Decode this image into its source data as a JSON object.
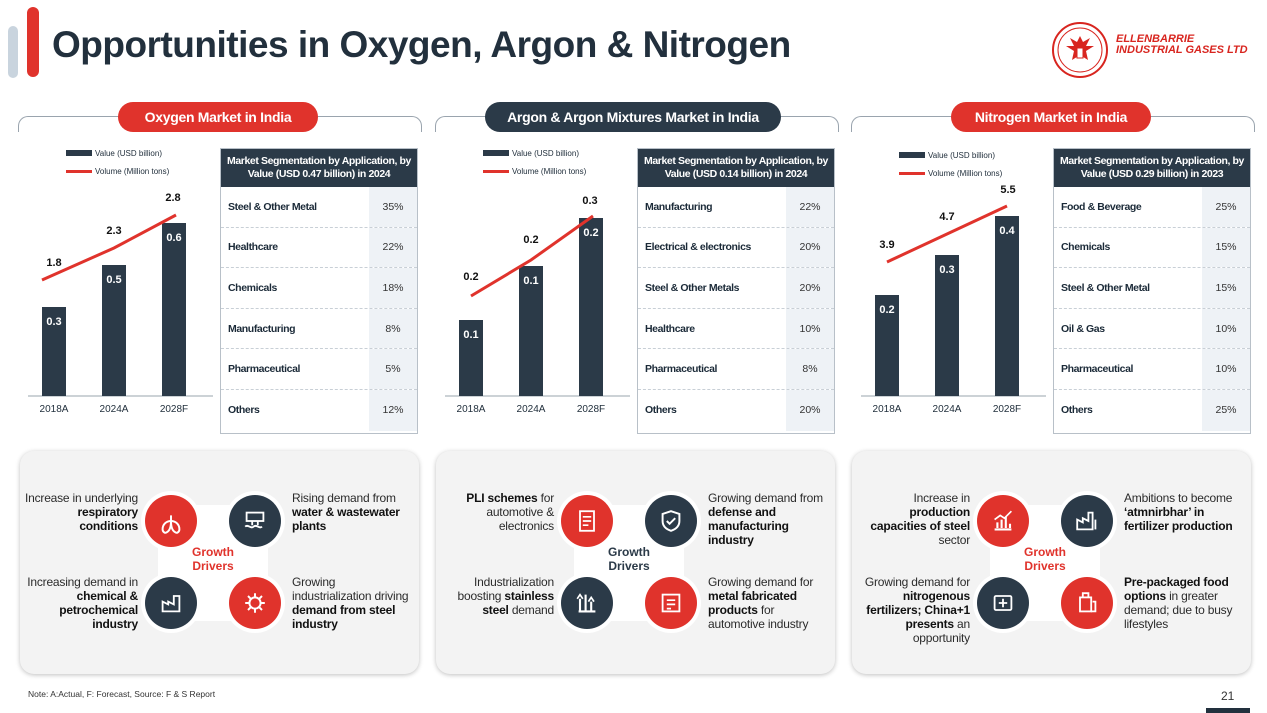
{
  "title": "Opportunities in Oxygen, Argon & Nitrogen",
  "logo": {
    "line1": "ELLENBARRIE",
    "line2": "INDUSTRIAL GASES LTD",
    "color": "#d8251f"
  },
  "colors": {
    "red": "#e0332c",
    "dark": "#2b3a48"
  },
  "legend": {
    "bar": "Value (USD billion)",
    "line": "Volume (Million tons)"
  },
  "chart_data": [
    {
      "type": "bar+line",
      "title": "Oxygen Market in India",
      "categories": [
        "2018A",
        "2024A",
        "2028F"
      ],
      "series": [
        {
          "name": "Value (USD billion)",
          "type": "bar",
          "values": [
            0.3,
            0.5,
            0.6
          ]
        },
        {
          "name": "Volume (Million tons)",
          "type": "line",
          "values": [
            1.8,
            2.3,
            2.8
          ]
        }
      ]
    },
    {
      "type": "bar+line",
      "title": "Argon & Argon Mixtures Market in India",
      "categories": [
        "2018A",
        "2024A",
        "2028F"
      ],
      "series": [
        {
          "name": "Value (USD billion)",
          "type": "bar",
          "values": [
            0.1,
            0.1,
            0.2
          ]
        },
        {
          "name": "Volume (Million tons)",
          "type": "line",
          "values": [
            0.2,
            0.2,
            0.3
          ]
        }
      ]
    },
    {
      "type": "bar+line",
      "title": "Nitrogen Market in India",
      "categories": [
        "2018A",
        "2024A",
        "2028F"
      ],
      "series": [
        {
          "name": "Value (USD billion)",
          "type": "bar",
          "values": [
            0.2,
            0.3,
            0.4
          ]
        },
        {
          "name": "Volume (Million tons)",
          "type": "line",
          "values": [
            3.9,
            4.7,
            5.5
          ]
        }
      ]
    }
  ],
  "panels": [
    {
      "pill": "Oxygen Market in India",
      "pill_style": "red",
      "seg_title": "Market Segmentation by Application, by Value (USD 0.47 billion) in 2024",
      "rows": [
        [
          "Steel & Other Metal",
          "35%"
        ],
        [
          "Healthcare",
          "22%"
        ],
        [
          "Chemicals",
          "18%"
        ],
        [
          "Manufacturing",
          "8%"
        ],
        [
          "Pharmaceutical",
          "5%"
        ],
        [
          "Others",
          "12%"
        ]
      ]
    },
    {
      "pill": "Argon & Argon Mixtures Market in India",
      "pill_style": "dark",
      "seg_title": "Market Segmentation by Application, by Value (USD 0.14 billion) in 2024",
      "rows": [
        [
          "Manufacturing",
          "22%"
        ],
        [
          "Electrical & electronics",
          "20%"
        ],
        [
          "Steel & Other Metals",
          "20%"
        ],
        [
          "Healthcare",
          "10%"
        ],
        [
          "Pharmaceutical",
          "8%"
        ],
        [
          "Others",
          "20%"
        ]
      ]
    },
    {
      "pill": "Nitrogen Market in India",
      "pill_style": "red",
      "seg_title": "Market Segmentation by Application, by Value (USD 0.29 billion) in 2023",
      "rows": [
        [
          "Food & Beverage",
          "25%"
        ],
        [
          "Chemicals",
          "15%"
        ],
        [
          "Steel & Other Metal",
          "15%"
        ],
        [
          "Oil & Gas",
          "10%"
        ],
        [
          "Pharmaceutical",
          "10%"
        ],
        [
          "Others",
          "25%"
        ]
      ]
    }
  ],
  "drivers": [
    {
      "center": "Growth Drivers",
      "center_color": "#e0332c",
      "tl": {
        "pre": "Increase in underlying ",
        "bold": "respiratory conditions",
        "post": ""
      },
      "tr": {
        "pre": "Rising demand from ",
        "bold": "water & wastewater plants",
        "post": ""
      },
      "bl": {
        "pre": "Increasing demand in ",
        "bold": "chemical & petrochemical industry",
        "post": ""
      },
      "br": {
        "pre": "Growing industrialization driving ",
        "bold": "demand from steel industry",
        "post": ""
      },
      "icons": [
        "lungs-icon",
        "water-plant-icon",
        "chemical-plant-icon",
        "steel-gear-icon"
      ]
    },
    {
      "center": "Growth Drivers",
      "center_color": "#2b3a48",
      "tl": {
        "pre": "",
        "bold": "PLI schemes",
        "post": " for automotive & electronics"
      },
      "tr": {
        "pre": "Growing demand from ",
        "bold": "defense and manufacturing industry",
        "post": ""
      },
      "bl": {
        "pre": "Industrialization boosting ",
        "bold": "stainless steel",
        "post": " demand"
      },
      "br": {
        "pre": "Growing demand for ",
        "bold": "metal fabricated products",
        "post": " for automotive industry"
      },
      "icons": [
        "document-icon",
        "shield-icon",
        "tools-icon",
        "fabrication-icon"
      ]
    },
    {
      "center": "Growth Drivers",
      "center_color": "#e0332c",
      "tl": {
        "pre": "Increase in ",
        "bold": "production capacities of steel",
        "post": " sector"
      },
      "tr": {
        "pre": "Ambitions to become ",
        "bold": "‘atmnirbhar’ in fertilizer production",
        "post": ""
      },
      "bl": {
        "pre": "Growing demand for ",
        "bold": "nitrogenous fertilizers; China+1 presents",
        "post": " an opportunity"
      },
      "br": {
        "pre": "",
        "bold": "Pre-packaged food options",
        "post": " in greater demand; due to busy lifestyles"
      },
      "icons": [
        "growth-chart-icon",
        "factory-icon",
        "fertilizer-icon",
        "food-package-icon"
      ]
    }
  ],
  "note": "Note: A:Actual, F: Forecast, Source: F & S Report",
  "page_number": "21"
}
